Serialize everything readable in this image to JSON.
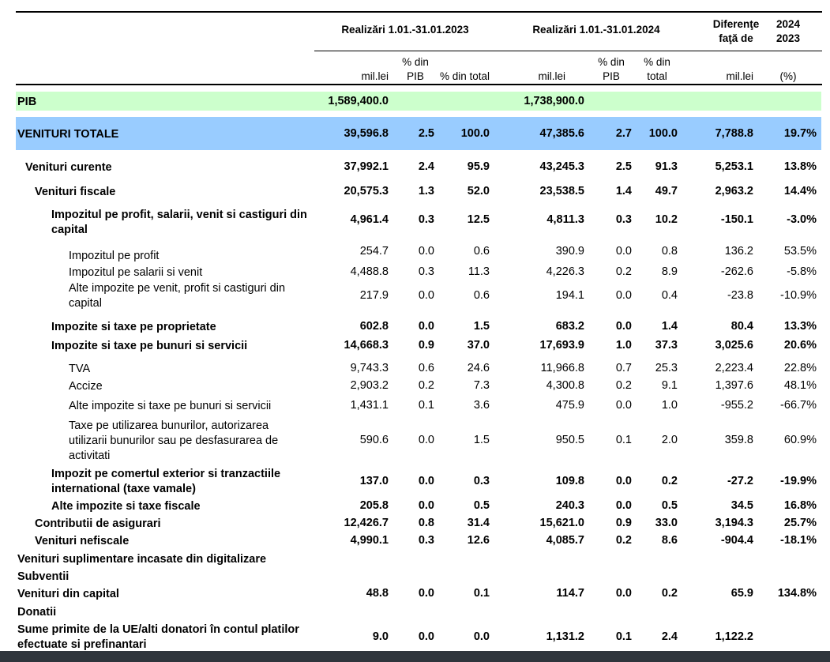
{
  "header": {
    "period_2023": "Realizări 1.01.-31.01.2023",
    "period_2024": "Realizări 1.01.-31.01.2024",
    "diff_title_1": "Diferenţe",
    "diff_title_2": "faţă de",
    "diff_year_1": "2024",
    "diff_year_2": "2023",
    "sub_mil": "mil.lei",
    "sub_pct_pib_1": "% din",
    "sub_pct_pib_2": "PIB",
    "sub_pct_total_2023": "% din total",
    "sub_pct_total_1": "% din",
    "sub_pct_total_2": "total",
    "sub_pct": "(%)"
  },
  "colors": {
    "pib_band": "#ccffcc",
    "venituri_band": "#99ccff",
    "bottom_bar": "#2f353c"
  },
  "rows": [
    {
      "label": "PIB",
      "bold": true,
      "indent": 0,
      "v23": "1,589,400.0",
      "p23": "",
      "t23": "",
      "v24": "1,738,900.0",
      "p24": "",
      "t24": "",
      "dv": "",
      "dp": ""
    },
    {
      "label": "VENITURI TOTALE",
      "bold": true,
      "indent": 0,
      "v23": "39,596.8",
      "p23": "2.5",
      "t23": "100.0",
      "v24": "47,385.6",
      "p24": "2.7",
      "t24": "100.0",
      "dv": "7,788.8",
      "dp": "19.7%"
    },
    {
      "label": "Venituri curente",
      "bold": true,
      "indent": 1,
      "v23": "37,992.1",
      "p23": "2.4",
      "t23": "95.9",
      "v24": "43,245.3",
      "p24": "2.5",
      "t24": "91.3",
      "dv": "5,253.1",
      "dp": "13.8%"
    },
    {
      "label": "Venituri fiscale",
      "bold": true,
      "indent": 2,
      "v23": "20,575.3",
      "p23": "1.3",
      "t23": "52.0",
      "v24": "23,538.5",
      "p24": "1.4",
      "t24": "49.7",
      "dv": "2,963.2",
      "dp": "14.4%"
    },
    {
      "label": "Impozitul pe profit, salarii, venit si castiguri din capital",
      "bold": true,
      "indent": 3,
      "v23": "4,961.4",
      "p23": "0.3",
      "t23": "12.5",
      "v24": "4,811.3",
      "p24": "0.3",
      "t24": "10.2",
      "dv": "-150.1",
      "dp": "-3.0%"
    },
    {
      "label": "Impozitul pe profit",
      "bold": false,
      "indent": 4,
      "v23": "254.7",
      "p23": "0.0",
      "t23": "0.6",
      "v24": "390.9",
      "p24": "0.0",
      "t24": "0.8",
      "dv": "136.2",
      "dp": "53.5%"
    },
    {
      "label": "Impozitul pe salarii si venit",
      "bold": false,
      "indent": 4,
      "v23": "4,488.8",
      "p23": "0.3",
      "t23": "11.3",
      "v24": "4,226.3",
      "p24": "0.2",
      "t24": "8.9",
      "dv": "-262.6",
      "dp": "-5.8%"
    },
    {
      "label": "Alte impozite pe venit, profit si castiguri din capital",
      "bold": false,
      "indent": 4,
      "v23": "217.9",
      "p23": "0.0",
      "t23": "0.6",
      "v24": "194.1",
      "p24": "0.0",
      "t24": "0.4",
      "dv": "-23.8",
      "dp": "-10.9%"
    },
    {
      "label": "Impozite si taxe pe proprietate",
      "bold": true,
      "indent": 3,
      "v23": "602.8",
      "p23": "0.0",
      "t23": "1.5",
      "v24": "683.2",
      "p24": "0.0",
      "t24": "1.4",
      "dv": "80.4",
      "dp": "13.3%"
    },
    {
      "label": "Impozite si taxe pe bunuri si servicii",
      "bold": true,
      "indent": 3,
      "v23": "14,668.3",
      "p23": "0.9",
      "t23": "37.0",
      "v24": "17,693.9",
      "p24": "1.0",
      "t24": "37.3",
      "dv": "3,025.6",
      "dp": "20.6%"
    },
    {
      "label": "TVA",
      "bold": false,
      "indent": 4,
      "v23": "9,743.3",
      "p23": "0.6",
      "t23": "24.6",
      "v24": "11,966.8",
      "p24": "0.7",
      "t24": "25.3",
      "dv": "2,223.4",
      "dp": "22.8%"
    },
    {
      "label": "Accize",
      "bold": false,
      "indent": 4,
      "v23": "2,903.2",
      "p23": "0.2",
      "t23": "7.3",
      "v24": "4,300.8",
      "p24": "0.2",
      "t24": "9.1",
      "dv": "1,397.6",
      "dp": "48.1%"
    },
    {
      "label": "Alte impozite si taxe pe bunuri si servicii",
      "bold": false,
      "indent": 4,
      "v23": "1,431.1",
      "p23": "0.1",
      "t23": "3.6",
      "v24": "475.9",
      "p24": "0.0",
      "t24": "1.0",
      "dv": "-955.2",
      "dp": "-66.7%"
    },
    {
      "label": "Taxe pe utilizarea bunurilor, autorizarea utilizarii bunurilor sau pe  desfasurarea de activitati",
      "bold": false,
      "indent": 4,
      "v23": "590.6",
      "p23": "0.0",
      "t23": "1.5",
      "v24": "950.5",
      "p24": "0.1",
      "t24": "2.0",
      "dv": "359.8",
      "dp": "60.9%"
    },
    {
      "label": "Impozit pe comertul exterior si tranzactiile international (taxe vamale)",
      "bold": true,
      "indent": 3,
      "v23": "137.0",
      "p23": "0.0",
      "t23": "0.3",
      "v24": "109.8",
      "p24": "0.0",
      "t24": "0.2",
      "dv": "-27.2",
      "dp": "-19.9%"
    },
    {
      "label": "Alte impozite si taxe fiscale",
      "bold": true,
      "indent": 3,
      "v23": "205.8",
      "p23": "0.0",
      "t23": "0.5",
      "v24": "240.3",
      "p24": "0.0",
      "t24": "0.5",
      "dv": "34.5",
      "dp": "16.8%"
    },
    {
      "label": "Contributii de asigurari",
      "bold": true,
      "indent": 2,
      "v23": "12,426.7",
      "p23": "0.8",
      "t23": "31.4",
      "v24": "15,621.0",
      "p24": "0.9",
      "t24": "33.0",
      "dv": "3,194.3",
      "dp": "25.7%"
    },
    {
      "label": "Venituri nefiscale",
      "bold": true,
      "indent": 2,
      "v23": "4,990.1",
      "p23": "0.3",
      "t23": "12.6",
      "v24": "4,085.7",
      "p24": "0.2",
      "t24": "8.6",
      "dv": "-904.4",
      "dp": "-18.1%"
    },
    {
      "label": "Venituri suplimentare incasate din digitalizare",
      "bold": true,
      "indent": 0,
      "v23": "",
      "p23": "",
      "t23": "",
      "v24": "",
      "p24": "",
      "t24": "",
      "dv": "",
      "dp": ""
    },
    {
      "label": "Subventii",
      "bold": true,
      "indent": 0,
      "v23": "",
      "p23": "",
      "t23": "",
      "v24": "",
      "p24": "",
      "t24": "",
      "dv": "",
      "dp": ""
    },
    {
      "label": "Venituri din capital",
      "bold": true,
      "indent": 0,
      "v23": "48.8",
      "p23": "0.0",
      "t23": "0.1",
      "v24": "114.7",
      "p24": "0.0",
      "t24": "0.2",
      "dv": "65.9",
      "dp": "134.8%"
    },
    {
      "label": "Donatii",
      "bold": true,
      "indent": 0,
      "v23": "",
      "p23": "",
      "t23": "",
      "v24": "",
      "p24": "",
      "t24": "",
      "dv": "",
      "dp": ""
    },
    {
      "label": "Sume primite de la UE/alti donatori în contul platilor efectuate si prefinantari",
      "bold": true,
      "indent": 0,
      "v23": "9.0",
      "p23": "0.0",
      "t23": "0.0",
      "v24": "1,131.2",
      "p24": "0.1",
      "t24": "2.4",
      "dv": "1,122.2",
      "dp": ""
    }
  ]
}
